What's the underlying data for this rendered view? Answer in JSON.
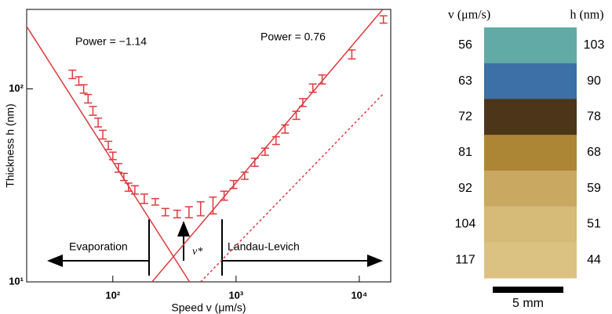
{
  "chart_data": {
    "type": "errorbar",
    "x_label": "Speed v (μm/s)",
    "y_label": "Thickness h (nm)",
    "annotations": {
      "power_left": "Power = −1.14",
      "power_right": "Power = 0.76",
      "evaporation": "Evaporation",
      "landau_levich": "Landau-Levich",
      "v_star": "v*"
    },
    "x": [
      47,
      53,
      58,
      63,
      69,
      76,
      83,
      92,
      100,
      111,
      123,
      134,
      151,
      180,
      221,
      267,
      333,
      415,
      516,
      650,
      800,
      955,
      1175,
      1420,
      1720,
      2110,
      2500,
      3080,
      3480,
      4200,
      5000,
      8700,
      15700
    ],
    "values": [
      119,
      110,
      100,
      89,
      77,
      67,
      58,
      51,
      45,
      39,
      35,
      31,
      30,
      27,
      26,
      23,
      22.5,
      23,
      24,
      25,
      28,
      32,
      35.5,
      41.7,
      47.3,
      54,
      62,
      73,
      85,
      101,
      112,
      151,
      229
    ],
    "errors": [
      6,
      5.5,
      5,
      4.5,
      4,
      3.5,
      3,
      2.5,
      2,
      2,
      1.5,
      1.5,
      1.5,
      1.5,
      1,
      1,
      1,
      1.5,
      2,
      2.5,
      1.5,
      1.5,
      1.5,
      2,
      2,
      2.5,
      3,
      3.5,
      4,
      5,
      6,
      8,
      10
    ],
    "color": "#e0393e",
    "fit_lines": [
      {
        "x": [
          19.4,
          420
        ],
        "y": [
          217,
          10
        ],
        "style": "solid"
      },
      {
        "x": [
          208,
          15500
        ],
        "y": [
          10,
          258
        ],
        "style": "solid"
      },
      {
        "x": [
          516,
          15500
        ],
        "y": [
          10,
          93.6
        ],
        "style": "dotted"
      }
    ],
    "xscale": "log",
    "yscale": "log",
    "xlim": [
      20,
      18000
    ],
    "ylim": [
      10,
      258
    ],
    "xticks": [
      {
        "value": 100,
        "label": "10²"
      },
      {
        "value": 1000,
        "label": "10³"
      },
      {
        "value": 10000,
        "label": "10⁴"
      }
    ],
    "yticks": [
      {
        "value": 10,
        "label": "10¹"
      },
      {
        "value": 100,
        "label": "10²"
      }
    ]
  },
  "film_strip": {
    "v_header": "v (μm/s)",
    "h_header": "h (nm)",
    "speeds": [
      "56",
      "63",
      "72",
      "81",
      "92",
      "104",
      "117"
    ],
    "thicknesses": [
      "103",
      "90",
      "78",
      "68",
      "59",
      "51",
      "44"
    ],
    "colors": [
      "#62aaa6",
      "#3c70a6",
      "#4d3519",
      "#ad8635",
      "#c9a862",
      "#d6ba78",
      "#dcc282"
    ],
    "scale_bar": "5 mm"
  }
}
